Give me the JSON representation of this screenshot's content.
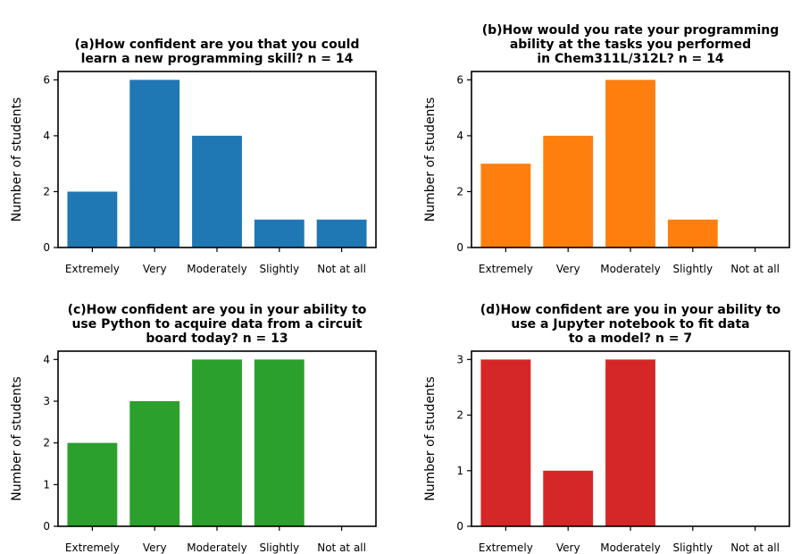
{
  "chart_data": [
    {
      "type": "bar",
      "title_lines": [
        "(a)How confident are you that you could",
        "learn a new programming skill? n = 14"
      ],
      "ylabel": "Number of students",
      "categories": [
        "Extremely",
        "Very",
        "Moderately",
        "Slightly",
        "Not at all"
      ],
      "values": [
        2,
        6,
        4,
        1,
        1
      ],
      "yticks": [
        0,
        2,
        4,
        6
      ],
      "ylim": [
        0,
        6.3
      ],
      "color": "#1f77b4"
    },
    {
      "type": "bar",
      "title_lines": [
        "(b)How would you rate your programming",
        "ability at the tasks you performed",
        "in Chem311L/312L? n = 14"
      ],
      "ylabel": "Number of students",
      "categories": [
        "Extremely",
        "Very",
        "Moderately",
        "Slightly",
        "Not at all"
      ],
      "values": [
        3,
        4,
        6,
        1,
        0
      ],
      "yticks": [
        0,
        2,
        4,
        6
      ],
      "ylim": [
        0,
        6.3
      ],
      "color": "#ff7f0e"
    },
    {
      "type": "bar",
      "title_lines": [
        "(c)How confident are you in your ability to",
        "use Python to acquire data from a circuit",
        "board today? n = 13"
      ],
      "ylabel": "Number of students",
      "categories": [
        "Extremely",
        "Very",
        "Moderately",
        "Slightly",
        "Not at all"
      ],
      "values": [
        2,
        3,
        4,
        4,
        0
      ],
      "yticks": [
        0,
        1,
        2,
        3,
        4
      ],
      "ylim": [
        0,
        4.2
      ],
      "color": "#2ca02c"
    },
    {
      "type": "bar",
      "title_lines": [
        "(d)How confident are you in your ability to",
        "use a Jupyter notebook to fit data",
        "to a model? n = 7"
      ],
      "ylabel": "Number of students",
      "categories": [
        "Extremely",
        "Very",
        "Moderately",
        "Slightly",
        "Not at all"
      ],
      "values": [
        3,
        1,
        3,
        0,
        0
      ],
      "yticks": [
        0,
        1,
        2,
        3
      ],
      "ylim": [
        0,
        3.15
      ],
      "color": "#d62728"
    }
  ]
}
